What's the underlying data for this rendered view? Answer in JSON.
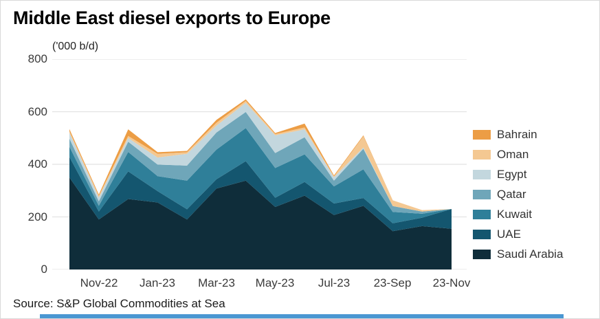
{
  "title": "Middle East diesel exports to Europe",
  "subtitle": "('000 b/d)",
  "source": "Source: S&P Global Commodities at Sea",
  "accent_bar_color": "#4a97d2",
  "gridline_color": "#e2e2e2",
  "chart_data": {
    "type": "area",
    "stacked": true,
    "title": "Middle East diesel exports to Europe",
    "units_label": "('000 b/d)",
    "x": [
      "Oct-22",
      "Nov-22",
      "Dec-22",
      "Jan-23",
      "Feb-23",
      "Mar-23",
      "Apr-23",
      "May-23",
      "Jun-23",
      "Jul-23",
      "Aug-23",
      "Sep-23",
      "Oct-23",
      "Nov-23"
    ],
    "x_tick_labels": [
      "Nov-22",
      "Jan-23",
      "Mar-23",
      "May-23",
      "Jul-23",
      "23-Sep",
      "23-Nov"
    ],
    "x_tick_positions": [
      1,
      3,
      5,
      7,
      9,
      11,
      13
    ],
    "ylim": [
      0,
      800
    ],
    "yticks": [
      0,
      200,
      400,
      600,
      800
    ],
    "grid": true,
    "legend_position": "right",
    "series": [
      {
        "name": "Saudi Arabia",
        "color": "#0f2d3a",
        "values": [
          350,
          190,
          268,
          255,
          190,
          308,
          338,
          238,
          281,
          207,
          242,
          146,
          165,
          155
        ]
      },
      {
        "name": "UAE",
        "color": "#14566f",
        "values": [
          78,
          30,
          105,
          43,
          39,
          35,
          74,
          35,
          52,
          44,
          30,
          30,
          32,
          75
        ]
      },
      {
        "name": "Kuwait",
        "color": "#2f7f99",
        "values": [
          39,
          22,
          74,
          57,
          109,
          113,
          126,
          113,
          105,
          65,
          109,
          43,
          15,
          0
        ]
      },
      {
        "name": "Qatar",
        "color": "#6fa6b9",
        "values": [
          31,
          17,
          39,
          44,
          57,
          65,
          61,
          57,
          65,
          22,
          78,
          22,
          8,
          0
        ]
      },
      {
        "name": "Egypt",
        "color": "#c3d7de",
        "values": [
          22,
          15,
          14,
          27,
          45,
          26,
          35,
          67,
          30,
          13,
          5,
          0,
          0,
          0
        ]
      },
      {
        "name": "Oman",
        "color": "#f4c892",
        "values": [
          6,
          6,
          8,
          14,
          6,
          11,
          7,
          5,
          7,
          3,
          43,
          22,
          6,
          0
        ]
      },
      {
        "name": "Bahrain",
        "color": "#ec9d45",
        "values": [
          8,
          5,
          25,
          6,
          5,
          11,
          6,
          4,
          15,
          4,
          3,
          0,
          0,
          0
        ]
      }
    ],
    "legend_order_top_to_bottom": [
      "Bahrain",
      "Oman",
      "Egypt",
      "Qatar",
      "Kuwait",
      "UAE",
      "Saudi Arabia"
    ]
  }
}
